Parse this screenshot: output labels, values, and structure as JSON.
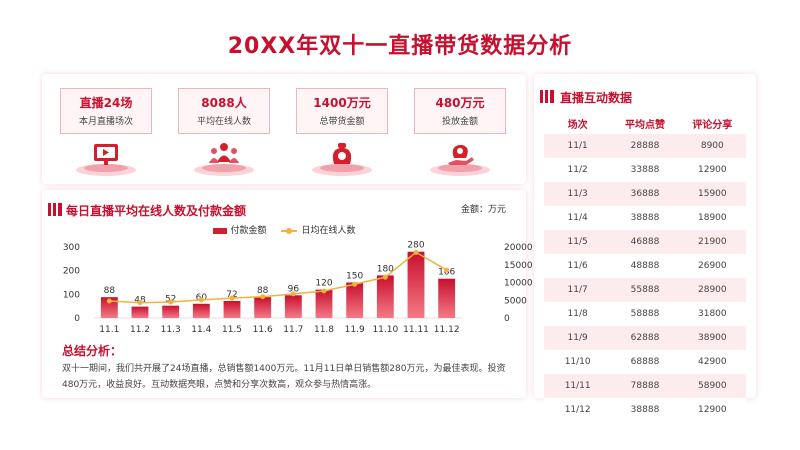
{
  "title": "20XX年双十一直播带货数据分析",
  "kpis": [
    {
      "value": "直播24场",
      "label": "本月直播场次",
      "icon": "live-screen-icon"
    },
    {
      "value": "8088人",
      "label": "平均在线人数",
      "icon": "audience-icon"
    },
    {
      "value": "1400万元",
      "label": "总带货金额",
      "icon": "money-bag-icon"
    },
    {
      "value": "480万元",
      "label": "投放金额",
      "icon": "investment-icon"
    }
  ],
  "chart_section": {
    "title": "每日直播平均在线人数及付款金额",
    "unit_note": "金额：万元"
  },
  "chart_data": {
    "type": "bar",
    "categories": [
      "11.1",
      "11.2",
      "11.3",
      "11.4",
      "11.5",
      "11.6",
      "11.7",
      "11.8",
      "11.9",
      "11.10",
      "11.11",
      "11.12"
    ],
    "series": [
      {
        "name": "付款金额",
        "type": "bar",
        "axis": "left",
        "values": [
          88,
          48,
          52,
          60,
          72,
          88,
          96,
          120,
          150,
          180,
          280,
          166
        ],
        "color": "#d4202c"
      },
      {
        "name": "日均在线人数",
        "type": "line",
        "axis": "right",
        "values": [
          4800,
          4300,
          4500,
          5100,
          5600,
          6000,
          6800,
          7600,
          9500,
          11500,
          18500,
          13500
        ],
        "color": "#f3b23c"
      }
    ],
    "ylim_left": [
      0,
      300
    ],
    "yticks_left": [
      0,
      100,
      200,
      300
    ],
    "ylim_right": [
      0,
      20000
    ],
    "yticks_right": [
      0,
      5000,
      10000,
      15000,
      20000
    ],
    "legend_position": "top-center",
    "grid": false
  },
  "summary": {
    "title": "总结分析：",
    "text": "双十一期间，我们共开展了24场直播，总销售额1400万元。11月11日单日销售额280万元，为最佳表现。投资480万元，收益良好。互动数据亮眼，点赞和分享次数高，观众参与热情高涨。"
  },
  "interaction": {
    "title": "直播互动数据",
    "headers": [
      "场次",
      "平均点赞",
      "评论分享"
    ],
    "rows": [
      [
        "11/1",
        "28888",
        "8900"
      ],
      [
        "11/2",
        "33888",
        "12900"
      ],
      [
        "11/3",
        "36888",
        "15900"
      ],
      [
        "11/4",
        "38888",
        "18900"
      ],
      [
        "11/5",
        "46888",
        "21900"
      ],
      [
        "11/6",
        "48888",
        "26900"
      ],
      [
        "11/7",
        "55888",
        "28900"
      ],
      [
        "11/8",
        "58888",
        "31800"
      ],
      [
        "11/9",
        "62888",
        "38900"
      ],
      [
        "11/10",
        "68888",
        "42900"
      ],
      [
        "11/11",
        "78888",
        "58900"
      ],
      [
        "11/12",
        "38888",
        "12900"
      ]
    ]
  },
  "colors": {
    "accent": "#c8102e",
    "bar": "#d4202c",
    "line": "#f3b23c",
    "stripe": "#fdecee"
  }
}
